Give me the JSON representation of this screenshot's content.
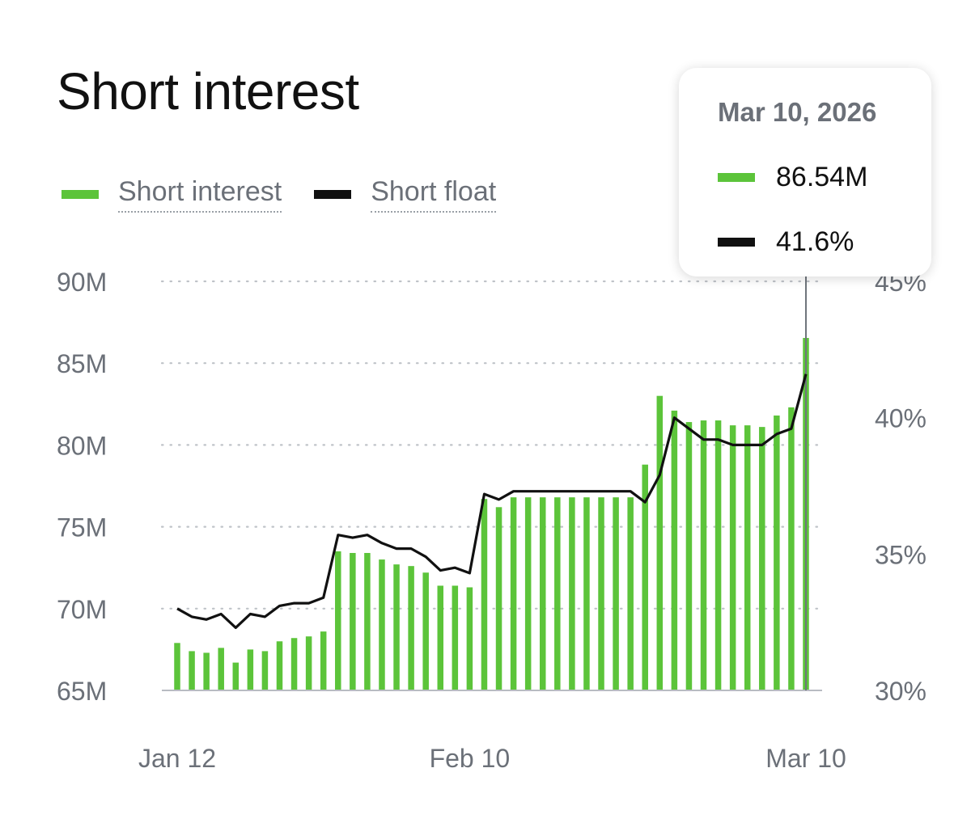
{
  "title": "Short interest",
  "legend": {
    "short_interest": {
      "label": "Short interest",
      "color": "#5cc43a"
    },
    "short_float": {
      "label": "Short float",
      "color": "#111111"
    }
  },
  "tooltip": {
    "date": "Mar 10, 2026",
    "short_interest_value": "86.54M",
    "short_float_value": "41.6%"
  },
  "chart_data": {
    "type": "bar",
    "title": "Short interest",
    "x_tick_labels": [
      "Jan 12",
      "Feb 10",
      "Mar 10"
    ],
    "left_axis": {
      "ylim": [
        65,
        90
      ],
      "ticks": [
        "90M",
        "85M",
        "80M",
        "75M",
        "70M",
        "65M"
      ],
      "tick_values": [
        90,
        85,
        80,
        75,
        70,
        65
      ]
    },
    "right_axis": {
      "ylim": [
        30,
        45
      ],
      "ticks": [
        "45%",
        "40%",
        "35%",
        "30%"
      ],
      "tick_values": [
        45,
        40,
        35,
        30
      ]
    },
    "grid": true,
    "legend_position": "top-left",
    "series": [
      {
        "name": "Short interest",
        "type": "bar",
        "axis": "left",
        "values": [
          67.9,
          67.4,
          67.3,
          67.6,
          66.7,
          67.5,
          67.4,
          68.0,
          68.2,
          68.3,
          68.6,
          73.5,
          73.4,
          73.4,
          73.0,
          72.7,
          72.6,
          72.2,
          71.4,
          71.4,
          71.3,
          76.7,
          76.2,
          76.8,
          76.8,
          76.8,
          76.8,
          76.8,
          76.8,
          76.8,
          76.8,
          76.8,
          78.8,
          83.0,
          82.1,
          81.4,
          81.5,
          81.5,
          81.2,
          81.2,
          81.1,
          81.8,
          82.3,
          86.54
        ]
      },
      {
        "name": "Short float",
        "type": "line",
        "axis": "right",
        "values": [
          33.0,
          32.7,
          32.6,
          32.8,
          32.3,
          32.8,
          32.7,
          33.1,
          33.2,
          33.2,
          33.4,
          35.7,
          35.6,
          35.7,
          35.4,
          35.2,
          35.2,
          34.9,
          34.4,
          34.5,
          34.3,
          37.2,
          37.0,
          37.3,
          37.3,
          37.3,
          37.3,
          37.3,
          37.3,
          37.3,
          37.3,
          37.3,
          36.9,
          37.9,
          40.0,
          39.6,
          39.2,
          39.2,
          39.0,
          39.0,
          39.0,
          39.4,
          39.6,
          41.6
        ]
      }
    ]
  }
}
